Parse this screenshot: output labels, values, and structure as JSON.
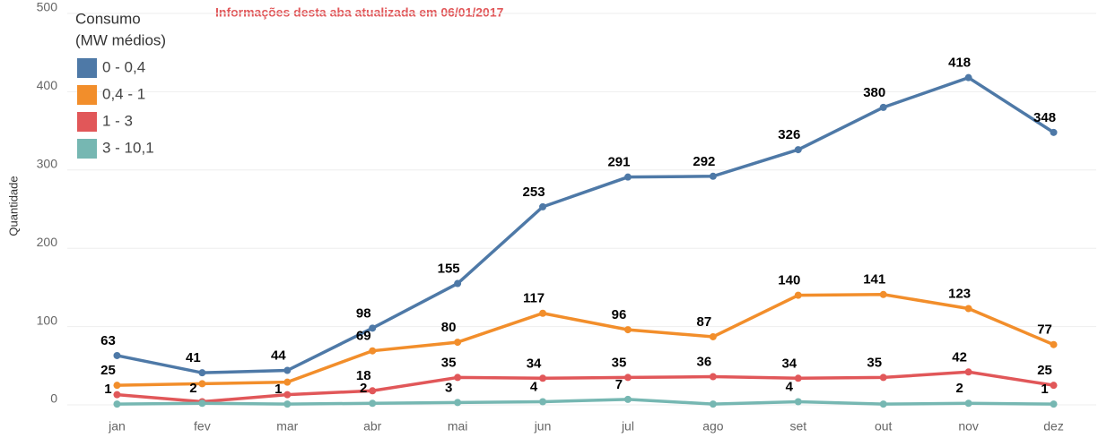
{
  "chart_data": {
    "type": "line",
    "annotation": "Informações desta aba atualizada em 06/01/2017",
    "y_label": "Quantidade",
    "legend_title": [
      "Consumo",
      "(MW médios)"
    ],
    "legend": "top-left",
    "grid": true,
    "categories": [
      "jan",
      "fev",
      "mar",
      "abr",
      "mai",
      "jun",
      "jul",
      "ago",
      "set",
      "out",
      "nov",
      "dez"
    ],
    "ylim": [
      0,
      500
    ],
    "yticks": [
      0,
      100,
      200,
      300,
      400,
      500
    ],
    "series": [
      {
        "name": "0 - 0,4",
        "color": "#4e79a7",
        "values": [
          63,
          41,
          44,
          98,
          155,
          253,
          291,
          292,
          326,
          380,
          418,
          348
        ]
      },
      {
        "name": "0,4 - 1",
        "color": "#f28e2b",
        "values": [
          25,
          27,
          29,
          69,
          80,
          117,
          96,
          87,
          140,
          141,
          123,
          77
        ],
        "value_labels": [
          "25",
          null,
          null,
          "69",
          "80",
          "117",
          "96",
          "87",
          "140",
          "141",
          "123",
          "77"
        ]
      },
      {
        "name": "1 - 3",
        "color": "#e15759",
        "values": [
          13,
          4,
          13,
          18,
          35,
          34,
          35,
          36,
          34,
          35,
          42,
          25
        ],
        "value_labels": [
          null,
          null,
          null,
          "18",
          "35",
          "34",
          "35",
          "36",
          "34",
          "35",
          "42",
          "25"
        ]
      },
      {
        "name": "3 - 10,1",
        "color": "#76b7b2",
        "values": [
          1,
          2,
          1,
          2,
          3,
          4,
          7,
          1,
          4,
          1,
          2,
          1
        ],
        "value_labels": [
          "1",
          "2",
          "1",
          "2",
          "3",
          "4",
          "7",
          null,
          "4",
          null,
          "2",
          "1"
        ]
      }
    ]
  }
}
